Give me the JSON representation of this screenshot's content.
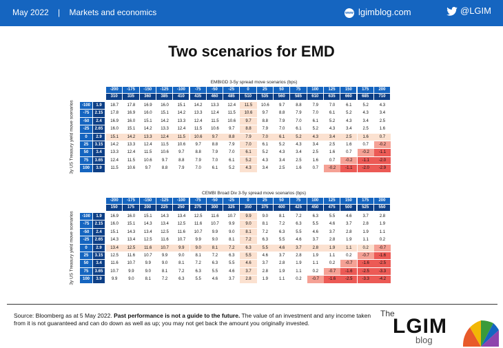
{
  "header": {
    "date": "May 2022",
    "separator": "|",
    "section": "Markets and economics",
    "blog_url": "lgimblog.com",
    "globe_text": "www",
    "twitter": "@LGIM"
  },
  "title": "Two scenarios for EMD",
  "row_axis_label": "3y US Treasury yield move scenarios",
  "footer": {
    "text_a": "Source: Bloomberg as at 5 May 2022. ",
    "text_bold": "Past performance is not a guide to the future.",
    "text_b": " The value of an investment and any income taken from it is not guaranteed and can do down as well as up; you may not get back the amount you originally invested."
  },
  "logo": {
    "the": "The",
    "main": "LGIM",
    "blog": "blog"
  },
  "colors": {
    "brand_blue": "#1565c0",
    "dark_blue": "#0d3f86",
    "peach": "#fbe1d0",
    "pink": "#f5a195",
    "red": "#ec5a55"
  },
  "chart_data": [
    {
      "type": "table",
      "title": "EMBIGD 3-5y spread move scenarios (bps)",
      "col_moves": [
        "-200",
        "-175",
        "-150",
        "-125",
        "-100",
        "-75",
        "-50",
        "-25",
        "0",
        "25",
        "50",
        "75",
        "100",
        "125",
        "150",
        "175",
        "200"
      ],
      "col_levels": [
        "310",
        "335",
        "360",
        "385",
        "410",
        "435",
        "460",
        "485",
        "510",
        "535",
        "560",
        "585",
        "610",
        "635",
        "660",
        "685",
        "710"
      ],
      "row_moves": [
        "-100",
        "-75",
        "-50",
        "-25",
        "0",
        "25",
        "50",
        "75",
        "100"
      ],
      "row_levels": [
        "1.9",
        "2.15",
        "2.4",
        "2.65",
        "2.9",
        "3.15",
        "3.4",
        "3.65",
        "3.9"
      ],
      "rows": [
        [
          "18.7",
          "17.8",
          "16.9",
          "16.0",
          "15.1",
          "14.2",
          "13.3",
          "12.4",
          "11.5",
          "10.6",
          "9.7",
          "8.8",
          "7.9",
          "7.0",
          "6.1",
          "5.2",
          "4.3"
        ],
        [
          "17.8",
          "16.9",
          "16.0",
          "15.1",
          "14.2",
          "13.3",
          "12.4",
          "11.5",
          "10.6",
          "9.7",
          "8.8",
          "7.9",
          "7.0",
          "6.1",
          "5.2",
          "4.3",
          "3.4"
        ],
        [
          "16.9",
          "16.0",
          "15.1",
          "14.2",
          "13.3",
          "12.4",
          "11.5",
          "10.6",
          "9.7",
          "8.8",
          "7.9",
          "7.0",
          "6.1",
          "5.2",
          "4.3",
          "3.4",
          "2.5"
        ],
        [
          "16.0",
          "15.1",
          "14.2",
          "13.3",
          "12.4",
          "11.5",
          "10.6",
          "9.7",
          "8.8",
          "7.9",
          "7.0",
          "6.1",
          "5.2",
          "4.3",
          "3.4",
          "2.5",
          "1.6"
        ],
        [
          "15.1",
          "14.2",
          "13.3",
          "12.4",
          "11.5",
          "10.6",
          "9.7",
          "8.8",
          "7.9",
          "7.0",
          "6.1",
          "5.2",
          "4.3",
          "3.4",
          "2.5",
          "1.6",
          "0.7"
        ],
        [
          "14.2",
          "13.3",
          "12.4",
          "11.5",
          "10.6",
          "9.7",
          "8.8",
          "7.9",
          "7.0",
          "6.1",
          "5.2",
          "4.3",
          "3.4",
          "2.5",
          "1.6",
          "0.7",
          "-0.2"
        ],
        [
          "13.3",
          "12.4",
          "11.5",
          "10.6",
          "9.7",
          "8.8",
          "7.9",
          "7.0",
          "6.1",
          "5.2",
          "4.3",
          "3.4",
          "2.5",
          "1.6",
          "0.7",
          "-0.2",
          "-1.1"
        ],
        [
          "12.4",
          "11.5",
          "10.6",
          "9.7",
          "8.8",
          "7.9",
          "7.0",
          "6.1",
          "5.2",
          "4.3",
          "3.4",
          "2.5",
          "1.6",
          "0.7",
          "-0.2",
          "-1.1",
          "-2.0"
        ],
        [
          "11.5",
          "10.6",
          "9.7",
          "8.8",
          "7.9",
          "7.0",
          "6.1",
          "5.2",
          "4.3",
          "3.4",
          "2.5",
          "1.6",
          "0.7",
          "-0.2",
          "-1.1",
          "-2.0",
          "-2.9"
        ]
      ]
    },
    {
      "type": "table",
      "title": "CEMBI Broad Div 3-5y spread move scenarios (bps)",
      "col_moves": [
        "-200",
        "-175",
        "-150",
        "-125",
        "-100",
        "-75",
        "-50",
        "-25",
        "0",
        "25",
        "50",
        "75",
        "100",
        "125",
        "150",
        "175",
        "200"
      ],
      "col_levels": [
        "150",
        "175",
        "200",
        "225",
        "250",
        "275",
        "300",
        "325",
        "350",
        "375",
        "400",
        "425",
        "450",
        "475",
        "500",
        "525",
        "550"
      ],
      "row_moves": [
        "-100",
        "-75",
        "-50",
        "-25",
        "0",
        "25",
        "50",
        "75",
        "100"
      ],
      "row_levels": [
        "1.9",
        "2.15",
        "2.4",
        "2.65",
        "2.9",
        "3.15",
        "3.4",
        "3.65",
        "3.9"
      ],
      "rows": [
        [
          "16.9",
          "16.0",
          "15.1",
          "14.3",
          "13.4",
          "12.5",
          "11.6",
          "10.7",
          "9.9",
          "9.0",
          "8.1",
          "7.2",
          "6.3",
          "5.5",
          "4.6",
          "3.7",
          "2.8"
        ],
        [
          "16.0",
          "15.1",
          "14.3",
          "13.4",
          "12.5",
          "11.6",
          "10.7",
          "9.9",
          "9.0",
          "8.1",
          "7.2",
          "6.3",
          "5.5",
          "4.6",
          "3.7",
          "2.8",
          "1.9"
        ],
        [
          "15.1",
          "14.3",
          "13.4",
          "12.5",
          "11.6",
          "10.7",
          "9.9",
          "9.0",
          "8.1",
          "7.2",
          "6.3",
          "5.5",
          "4.6",
          "3.7",
          "2.8",
          "1.9",
          "1.1"
        ],
        [
          "14.3",
          "13.4",
          "12.5",
          "11.6",
          "10.7",
          "9.9",
          "9.0",
          "8.1",
          "7.2",
          "6.3",
          "5.5",
          "4.6",
          "3.7",
          "2.8",
          "1.9",
          "1.1",
          "0.2"
        ],
        [
          "13.4",
          "12.5",
          "11.6",
          "10.7",
          "9.9",
          "9.0",
          "8.1",
          "7.2",
          "6.3",
          "5.5",
          "4.6",
          "3.7",
          "2.8",
          "1.9",
          "1.1",
          "0.2",
          "-0.7"
        ],
        [
          "12.5",
          "11.6",
          "10.7",
          "9.9",
          "9.0",
          "8.1",
          "7.2",
          "6.3",
          "5.5",
          "4.6",
          "3.7",
          "2.8",
          "1.9",
          "1.1",
          "0.2",
          "-0.7",
          "-1.6"
        ],
        [
          "11.6",
          "10.7",
          "9.9",
          "9.0",
          "8.1",
          "7.2",
          "6.3",
          "5.5",
          "4.6",
          "3.7",
          "2.8",
          "1.9",
          "1.1",
          "0.2",
          "-0.7",
          "-1.6",
          "-2.5"
        ],
        [
          "10.7",
          "9.9",
          "9.0",
          "8.1",
          "7.2",
          "6.3",
          "5.5",
          "4.6",
          "3.7",
          "2.8",
          "1.9",
          "1.1",
          "0.2",
          "-0.7",
          "-1.6",
          "-2.5",
          "-3.3"
        ],
        [
          "9.9",
          "9.0",
          "8.1",
          "7.2",
          "6.3",
          "5.5",
          "4.6",
          "3.7",
          "2.8",
          "1.9",
          "1.1",
          "0.2",
          "-0.7",
          "-1.6",
          "-2.5",
          "-3.3",
          "-4.2"
        ]
      ]
    }
  ]
}
